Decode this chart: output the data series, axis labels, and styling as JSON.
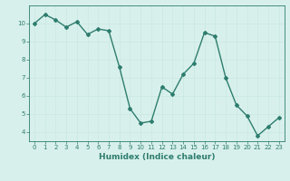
{
  "x": [
    0,
    1,
    2,
    3,
    4,
    5,
    6,
    7,
    8,
    9,
    10,
    11,
    12,
    13,
    14,
    15,
    16,
    17,
    18,
    19,
    20,
    21,
    22,
    23
  ],
  "y": [
    10.0,
    10.5,
    10.2,
    9.8,
    10.1,
    9.4,
    9.7,
    9.6,
    7.6,
    5.3,
    4.5,
    4.6,
    6.5,
    6.1,
    7.2,
    7.8,
    9.5,
    9.3,
    7.0,
    5.5,
    4.9,
    3.8,
    4.3,
    4.8
  ],
  "line_color": "#2e7d6e",
  "marker": "D",
  "markersize": 2.0,
  "linewidth": 1.0,
  "xlabel": "Humidex (Indice chaleur)",
  "xlabel_fontsize": 6.5,
  "xlim": [
    -0.5,
    23.5
  ],
  "ylim": [
    3.5,
    11.0
  ],
  "yticks": [
    4,
    5,
    6,
    7,
    8,
    9,
    10
  ],
  "xticks": [
    0,
    1,
    2,
    3,
    4,
    5,
    6,
    7,
    8,
    9,
    10,
    11,
    12,
    13,
    14,
    15,
    16,
    17,
    18,
    19,
    20,
    21,
    22,
    23
  ],
  "grid_color": "#c8e8e0",
  "bg_color": "#d8f0ec",
  "tick_color": "#2e7d6e",
  "tick_fontsize": 5.0,
  "xlabel_color": "#2e7d6e",
  "axis_color": "#2e7d6e"
}
